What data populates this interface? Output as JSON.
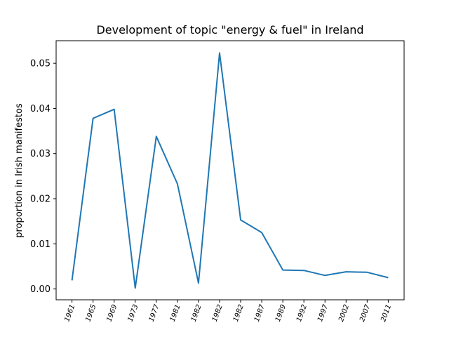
{
  "chart_data": {
    "type": "line",
    "title": "Development of topic \"energy & fuel\" in Ireland",
    "xlabel": "",
    "ylabel": "proportion in Irish manifestos",
    "categories": [
      "1961",
      "1965",
      "1969",
      "1973",
      "1977",
      "1981",
      "1982",
      "1982",
      "1982",
      "1987",
      "1989",
      "1992",
      "1997",
      "2002",
      "2007",
      "2011"
    ],
    "series": [
      {
        "values": [
          0.0019,
          0.0378,
          0.0398,
          0.0002,
          0.0338,
          0.0233,
          0.0013,
          0.0523,
          0.0153,
          0.0125,
          0.0042,
          0.0041,
          0.003,
          0.0038,
          0.0037,
          0.0025
        ],
        "color": "#1f77b4"
      }
    ],
    "ylim": [
      -0.0024,
      0.055
    ],
    "yticks": [
      "0.00",
      "0.01",
      "0.02",
      "0.03",
      "0.04",
      "0.05"
    ],
    "grid": false,
    "legend": "none"
  }
}
